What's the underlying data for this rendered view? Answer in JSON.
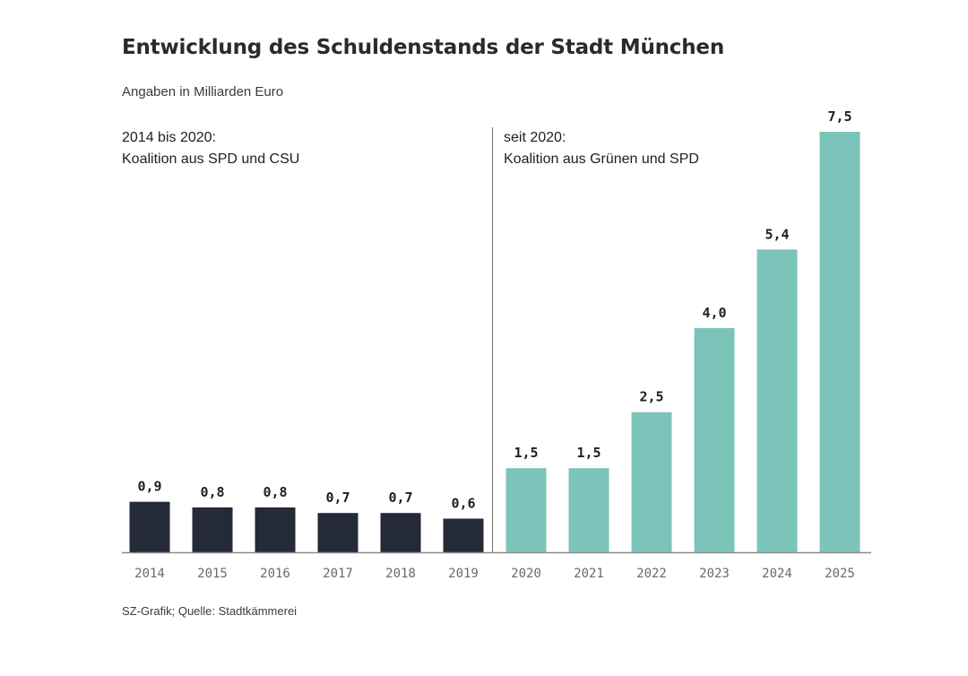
{
  "chart_data": {
    "type": "bar",
    "title": "Entwicklung des Schuldenstands der Stadt München",
    "subtitle": "Angaben in Milliarden Euro",
    "categories": [
      "2014",
      "2015",
      "2016",
      "2017",
      "2018",
      "2019",
      "2020",
      "2021",
      "2022",
      "2023",
      "2024",
      "2025"
    ],
    "values": [
      0.9,
      0.8,
      0.8,
      0.7,
      0.7,
      0.6,
      1.5,
      1.5,
      2.5,
      4.0,
      5.4,
      7.5
    ],
    "data_labels": [
      "0,9",
      "0,8",
      "0,8",
      "0,7",
      "0,7",
      "0,6",
      "1,5",
      "1,5",
      "2,5",
      "4,0",
      "5,4",
      "7,5"
    ],
    "groups": [
      {
        "label_lines": [
          "2014 bis 2020:",
          "Koalition aus SPD und CSU"
        ],
        "categories": [
          "2014",
          "2015",
          "2016",
          "2017",
          "2018",
          "2019"
        ],
        "color": "#252a38"
      },
      {
        "label_lines": [
          "seit 2020:",
          "Koalition aus Grünen und SPD"
        ],
        "categories": [
          "2020",
          "2021",
          "2022",
          "2023",
          "2024",
          "2025"
        ],
        "color": "#7cc4b9"
      }
    ],
    "ylim": [
      0,
      7.5
    ],
    "xlabel": "",
    "ylabel": "",
    "grid": false,
    "legend": "none",
    "source": "SZ-Grafik; Quelle: Stadtkämmerei"
  },
  "colors": {
    "axis": "#8c8c8c",
    "divider": "#6f6f6f"
  }
}
